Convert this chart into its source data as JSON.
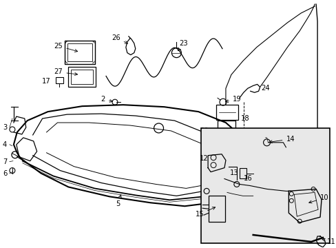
{
  "bg_color": "#ffffff",
  "line_color": "#000000",
  "inset_bg": "#e8e8e8",
  "figsize": [
    4.89,
    3.6
  ],
  "dpi": 100,
  "xlim": [
    0,
    489
  ],
  "ylim": [
    0,
    360
  ]
}
